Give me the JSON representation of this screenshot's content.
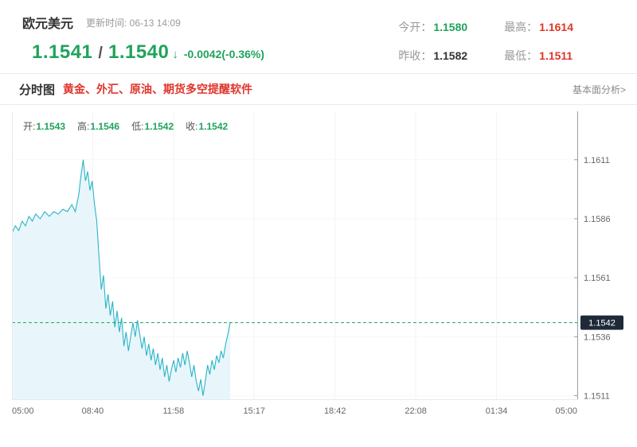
{
  "colors": {
    "green": "#1fa35c",
    "red": "#e0352b",
    "dark": "#333333",
    "line": "#2ab4c6",
    "fill": "#e8f6fb",
    "tag_bg": "#1f2a38",
    "tag_text": "#ffffff",
    "axis": "#9aa0a6",
    "tick_text": "#666666"
  },
  "header": {
    "symbol": "欧元美元",
    "update_label": "更新时间: 06-13 14:09",
    "price_main": "1.1541",
    "price_sep": "/",
    "price_secondary": "1.1540",
    "arrow": "↓",
    "change": "-0.0042(-0.36%)",
    "stats": [
      {
        "label": "今开：",
        "value": "1.1580",
        "color": "#1fa35c"
      },
      {
        "label": "最高：",
        "value": "1.1614",
        "color": "#e0352b"
      },
      {
        "label": "昨收：",
        "value": "1.1582",
        "color": "#333333"
      },
      {
        "label": "最低：",
        "value": "1.1511",
        "color": "#e0352b"
      }
    ]
  },
  "toolbar": {
    "tab": "分时图",
    "promo": "黄金、外汇、原油、期货多空提醒软件",
    "link": "基本面分析>"
  },
  "chart_data": {
    "type": "area",
    "title": "欧元美元 分时图",
    "ohlc_legend": [
      {
        "label": "开:",
        "value": "1.1543"
      },
      {
        "label": "高:",
        "value": "1.1546"
      },
      {
        "label": "低:",
        "value": "1.1542"
      },
      {
        "label": "收:",
        "value": "1.1542"
      }
    ],
    "x_ticks": [
      "05:00",
      "08:40",
      "11:58",
      "15:17",
      "18:42",
      "22:08",
      "01:34",
      "05:00"
    ],
    "y_ticks": [
      1.1611,
      1.1586,
      1.1561,
      1.1536,
      1.1511
    ],
    "y_range": [
      1.15095,
      1.16315
    ],
    "current_price": 1.1542,
    "legend_position": "top-left",
    "grid": true,
    "points": [
      [
        0.0,
        1.158
      ],
      [
        0.006,
        1.1583
      ],
      [
        0.012,
        1.1581
      ],
      [
        0.018,
        1.1585
      ],
      [
        0.024,
        1.1583
      ],
      [
        0.03,
        1.1587
      ],
      [
        0.036,
        1.1585
      ],
      [
        0.042,
        1.1588
      ],
      [
        0.05,
        1.1586
      ],
      [
        0.058,
        1.1589
      ],
      [
        0.066,
        1.1587
      ],
      [
        0.074,
        1.1589
      ],
      [
        0.082,
        1.1588
      ],
      [
        0.09,
        1.159
      ],
      [
        0.098,
        1.1589
      ],
      [
        0.106,
        1.1592
      ],
      [
        0.112,
        1.1589
      ],
      [
        0.118,
        1.1596
      ],
      [
        0.122,
        1.1604
      ],
      [
        0.126,
        1.1611
      ],
      [
        0.13,
        1.1602
      ],
      [
        0.134,
        1.1606
      ],
      [
        0.138,
        1.1598
      ],
      [
        0.142,
        1.1602
      ],
      [
        0.146,
        1.1592
      ],
      [
        0.15,
        1.1585
      ],
      [
        0.154,
        1.157
      ],
      [
        0.158,
        1.1556
      ],
      [
        0.162,
        1.1562
      ],
      [
        0.166,
        1.1548
      ],
      [
        0.17,
        1.1554
      ],
      [
        0.174,
        1.1545
      ],
      [
        0.178,
        1.1551
      ],
      [
        0.182,
        1.154
      ],
      [
        0.186,
        1.1547
      ],
      [
        0.19,
        1.1538
      ],
      [
        0.194,
        1.1544
      ],
      [
        0.198,
        1.1532
      ],
      [
        0.202,
        1.1538
      ],
      [
        0.206,
        1.153
      ],
      [
        0.21,
        1.1536
      ],
      [
        0.214,
        1.1542
      ],
      [
        0.218,
        1.1536
      ],
      [
        0.222,
        1.1543
      ],
      [
        0.226,
        1.1537
      ],
      [
        0.23,
        1.1531
      ],
      [
        0.234,
        1.1536
      ],
      [
        0.238,
        1.1528
      ],
      [
        0.242,
        1.1533
      ],
      [
        0.246,
        1.1526
      ],
      [
        0.25,
        1.1531
      ],
      [
        0.254,
        1.1524
      ],
      [
        0.258,
        1.1529
      ],
      [
        0.262,
        1.1522
      ],
      [
        0.266,
        1.1527
      ],
      [
        0.27,
        1.1519
      ],
      [
        0.274,
        1.1524
      ],
      [
        0.278,
        1.1517
      ],
      [
        0.282,
        1.1522
      ],
      [
        0.286,
        1.1526
      ],
      [
        0.29,
        1.1521
      ],
      [
        0.294,
        1.1527
      ],
      [
        0.298,
        1.1523
      ],
      [
        0.302,
        1.1529
      ],
      [
        0.306,
        1.1524
      ],
      [
        0.31,
        1.153
      ],
      [
        0.314,
        1.1525
      ],
      [
        0.318,
        1.1519
      ],
      [
        0.322,
        1.1524
      ],
      [
        0.326,
        1.1517
      ],
      [
        0.33,
        1.1513
      ],
      [
        0.334,
        1.1518
      ],
      [
        0.338,
        1.1511
      ],
      [
        0.342,
        1.1517
      ],
      [
        0.346,
        1.1524
      ],
      [
        0.35,
        1.152
      ],
      [
        0.354,
        1.1526
      ],
      [
        0.358,
        1.1522
      ],
      [
        0.362,
        1.1528
      ],
      [
        0.366,
        1.1525
      ],
      [
        0.37,
        1.153
      ],
      [
        0.374,
        1.1527
      ],
      [
        0.378,
        1.1533
      ],
      [
        0.382,
        1.1537
      ],
      [
        0.386,
        1.1542
      ]
    ]
  }
}
